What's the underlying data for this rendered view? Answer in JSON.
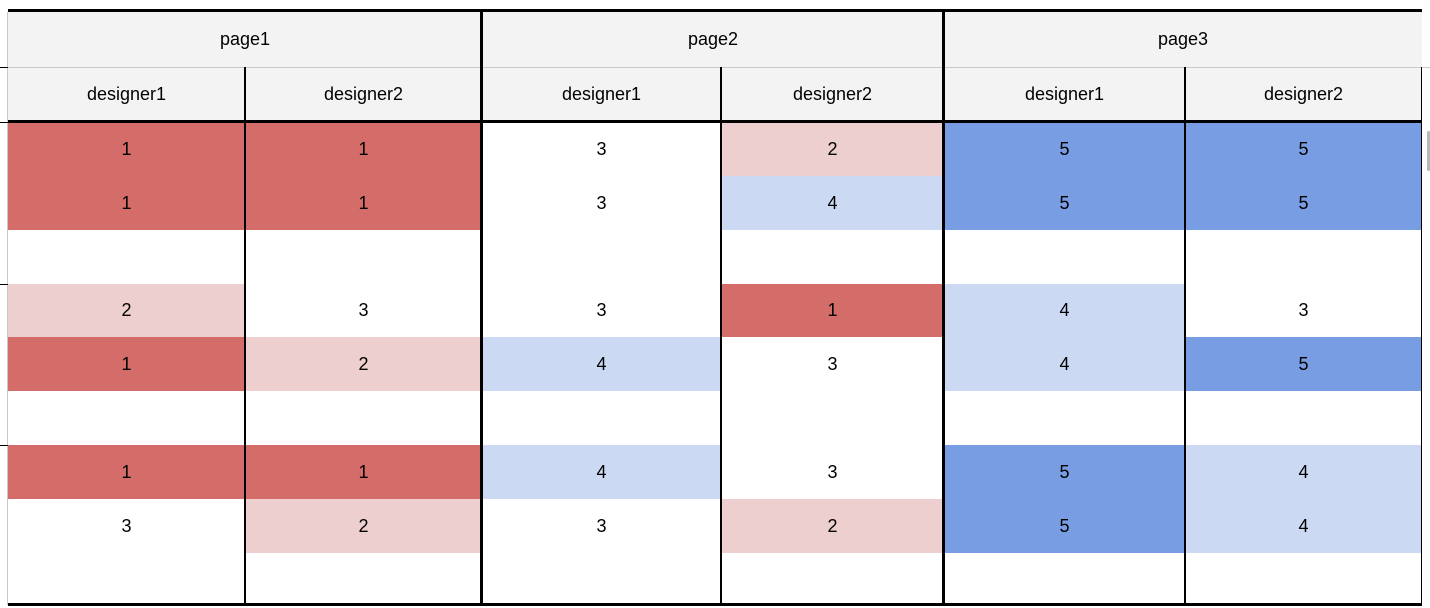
{
  "colors": {
    "dark_red": "#d46d6a",
    "light_red": "#eccfce",
    "light_blue": "#cbd9f3",
    "dark_blue": "#789de3",
    "header_bg": "#f3f3f3",
    "white": "#ffffff"
  },
  "pages": [
    "page1",
    "page2",
    "page3"
  ],
  "designers": [
    "designer1",
    "designer2",
    "designer1",
    "designer2",
    "designer1",
    "designer2"
  ],
  "rows": [
    [
      1,
      1,
      3,
      2,
      5,
      5
    ],
    [
      1,
      1,
      3,
      4,
      5,
      5
    ],
    [
      null,
      null,
      null,
      null,
      null,
      null
    ],
    [
      2,
      3,
      3,
      1,
      4,
      3
    ],
    [
      1,
      2,
      4,
      3,
      4,
      5
    ],
    [
      null,
      null,
      null,
      null,
      null,
      null
    ],
    [
      1,
      1,
      4,
      3,
      5,
      4
    ],
    [
      3,
      2,
      3,
      2,
      5,
      4
    ],
    [
      null,
      null,
      null,
      null,
      null,
      null
    ]
  ]
}
